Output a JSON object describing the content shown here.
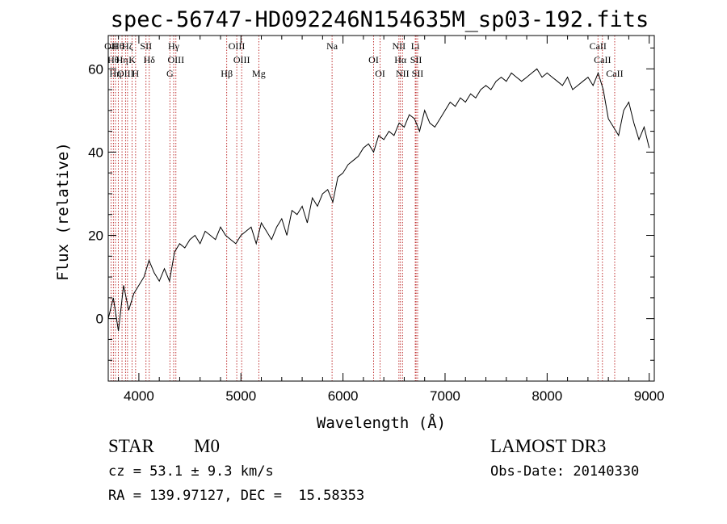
{
  "chart_data": {
    "type": "line",
    "title": "spec-56747-HD092246N154635M_sp03-192.fits",
    "xlabel": "Wavelength (Å)",
    "ylabel": "Flux (relative)",
    "xlim": [
      3700,
      9050
    ],
    "ylim": [
      -15,
      68
    ],
    "xticks": [
      4000,
      5000,
      6000,
      7000,
      8000,
      9000
    ],
    "yticks": [
      0,
      20,
      40,
      60
    ],
    "xtick_labels": [
      "4000",
      "5000",
      "6000",
      "7000",
      "8000",
      "9000"
    ],
    "ytick_labels": [
      "0",
      "20",
      "40",
      "60"
    ],
    "grid": false,
    "series": [
      {
        "x": [
          3700,
          3750,
          3800,
          3850,
          3900,
          3950,
          4000,
          4050,
          4100,
          4150,
          4200,
          4250,
          4300,
          4350,
          4400,
          4450,
          4500,
          4550,
          4600,
          4650,
          4700,
          4750,
          4800,
          4850,
          4900,
          4950,
          5000,
          5050,
          5100,
          5150,
          5200,
          5250,
          5300,
          5350,
          5400,
          5450,
          5500,
          5550,
          5600,
          5650,
          5700,
          5750,
          5800,
          5850,
          5900,
          5950,
          6000,
          6050,
          6100,
          6150,
          6200,
          6250,
          6300,
          6350,
          6400,
          6450,
          6500,
          6550,
          6600,
          6650,
          6700,
          6750,
          6800,
          6850,
          6900,
          6950,
          7000,
          7050,
          7100,
          7150,
          7200,
          7250,
          7300,
          7350,
          7400,
          7450,
          7500,
          7550,
          7600,
          7650,
          7700,
          7750,
          7800,
          7850,
          7900,
          7950,
          8000,
          8050,
          8100,
          8150,
          8200,
          8250,
          8300,
          8350,
          8400,
          8450,
          8500,
          8550,
          8600,
          8650,
          8700,
          8750,
          8800,
          8850,
          8900,
          8950,
          9000
        ],
        "values": [
          0,
          5,
          -3,
          8,
          2,
          6,
          8,
          10,
          14,
          11,
          9,
          12,
          9,
          16,
          18,
          17,
          19,
          20,
          18,
          21,
          20,
          19,
          22,
          20,
          19,
          18,
          20,
          21,
          22,
          18,
          23,
          21,
          19,
          22,
          24,
          20,
          26,
          25,
          27,
          23,
          29,
          27,
          30,
          31,
          28,
          34,
          35,
          37,
          38,
          39,
          41,
          42,
          40,
          44,
          43,
          45,
          44,
          47,
          46,
          49,
          48,
          45,
          50,
          47,
          46,
          48,
          50,
          52,
          51,
          53,
          52,
          54,
          53,
          55,
          56,
          55,
          57,
          58,
          57,
          59,
          58,
          57,
          58,
          59,
          60,
          58,
          59,
          58,
          57,
          56,
          58,
          55,
          56,
          57,
          58,
          56,
          59,
          55,
          48,
          46,
          44,
          50,
          52,
          47,
          43,
          46,
          41
        ]
      }
    ],
    "line_markers": [
      {
        "wl": 3727,
        "label": "OII"
      },
      {
        "wl": 3750,
        "label": "Hθ"
      },
      {
        "wl": 3771,
        "label": "Hη"
      },
      {
        "wl": 3798,
        "label": "Hθ"
      },
      {
        "wl": 3835,
        "label": "Hη"
      },
      {
        "wl": 3869,
        "label": "OIII"
      },
      {
        "wl": 3889,
        "label": "Hζ"
      },
      {
        "wl": 3934,
        "label": "K"
      },
      {
        "wl": 3968,
        "label": "H"
      },
      {
        "wl": 4070,
        "label": "SII"
      },
      {
        "wl": 4102,
        "label": "Hδ"
      },
      {
        "wl": 4304,
        "label": "G"
      },
      {
        "wl": 4341,
        "label": "Hγ"
      },
      {
        "wl": 4363,
        "label": "OIII"
      },
      {
        "wl": 4861,
        "label": "Hβ"
      },
      {
        "wl": 4959,
        "label": "OIII"
      },
      {
        "wl": 5007,
        "label": "OIII"
      },
      {
        "wl": 5175,
        "label": "Mg"
      },
      {
        "wl": 5893,
        "label": "Na"
      },
      {
        "wl": 6300,
        "label": "OI"
      },
      {
        "wl": 6364,
        "label": "OI"
      },
      {
        "wl": 6548,
        "label": "NII"
      },
      {
        "wl": 6563,
        "label": "Hα"
      },
      {
        "wl": 6583,
        "label": "NII"
      },
      {
        "wl": 6708,
        "label": "Li"
      },
      {
        "wl": 6716,
        "label": "SII"
      },
      {
        "wl": 6731,
        "label": "SII"
      },
      {
        "wl": 8498,
        "label": "CaII"
      },
      {
        "wl": 8542,
        "label": "CaII"
      },
      {
        "wl": 8662,
        "label": "CaII"
      }
    ]
  },
  "info": {
    "class": "STAR",
    "subclass": "M0",
    "survey": "LAMOST DR3",
    "cz": "cz = 53.1 ± 9.3 km/s",
    "obs_date": "Obs-Date: 20140330",
    "coords": "RA = 139.97127, DEC =  15.58353"
  }
}
